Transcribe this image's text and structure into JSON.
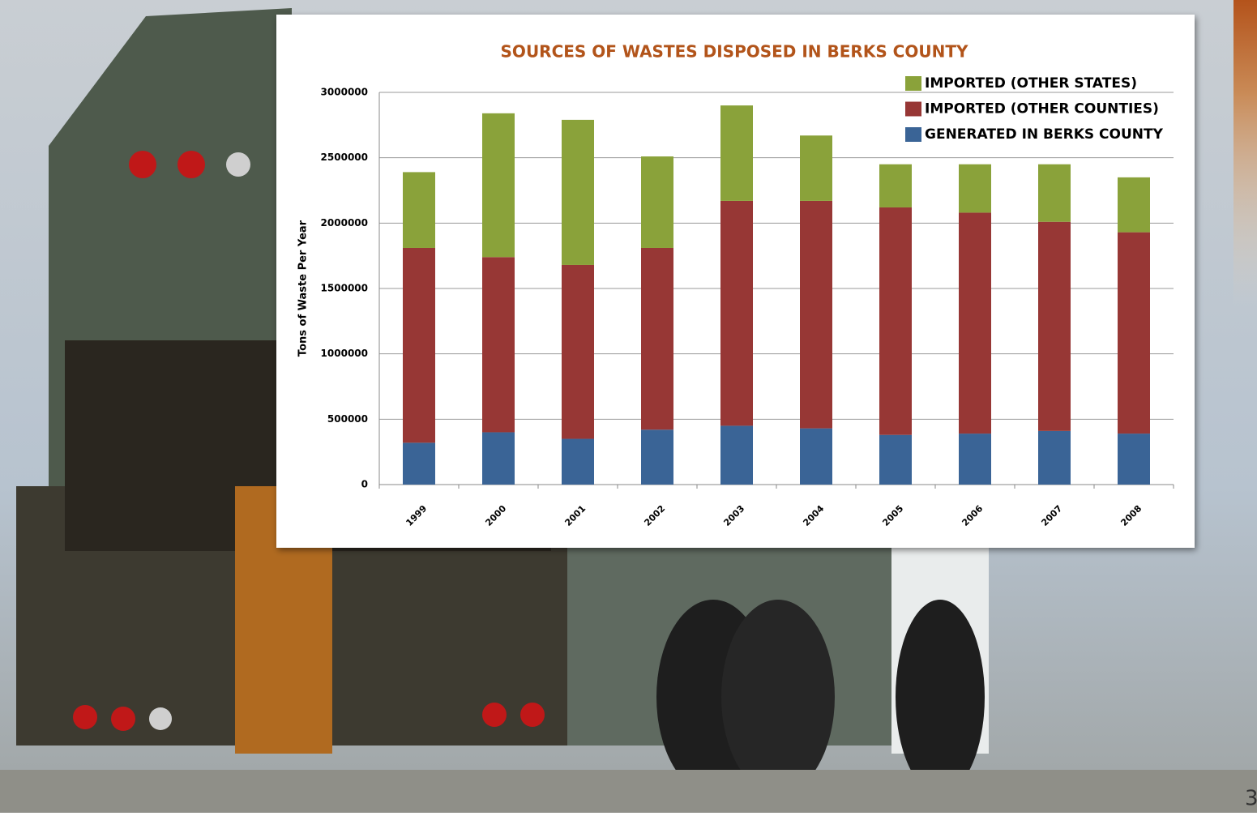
{
  "chart_data": {
    "type": "stacked_bar",
    "title": "SOURCES OF WASTES DISPOSED IN BERKS COUNTY",
    "y_label": "Tons of Waste Per Year",
    "categories": [
      "1999",
      "2000",
      "2001",
      "2002",
      "2003",
      "2004",
      "2005",
      "2006",
      "2007",
      "2008"
    ],
    "series": [
      {
        "name": "GENERATED IN BERKS COUNTY",
        "color": "#3a6496",
        "values": [
          320000,
          400000,
          350000,
          420000,
          450000,
          430000,
          380000,
          390000,
          410000,
          390000
        ]
      },
      {
        "name": "IMPORTED (OTHER COUNTIES)",
        "color": "#973735",
        "values": [
          1490000,
          1340000,
          1330000,
          1390000,
          1720000,
          1740000,
          1740000,
          1690000,
          1600000,
          1540000
        ]
      },
      {
        "name": "IMPORTED (OTHER STATES)",
        "color": "#8aa23a",
        "values": [
          580000,
          1100000,
          1110000,
          700000,
          730000,
          500000,
          330000,
          370000,
          440000,
          420000
        ]
      }
    ],
    "ylim": [
      0,
      3000000
    ],
    "yticks": [
      0,
      500000,
      1000000,
      1500000,
      2000000,
      2500000,
      3000000
    ],
    "grid": true,
    "legend": "top-right"
  },
  "page_number": "3"
}
